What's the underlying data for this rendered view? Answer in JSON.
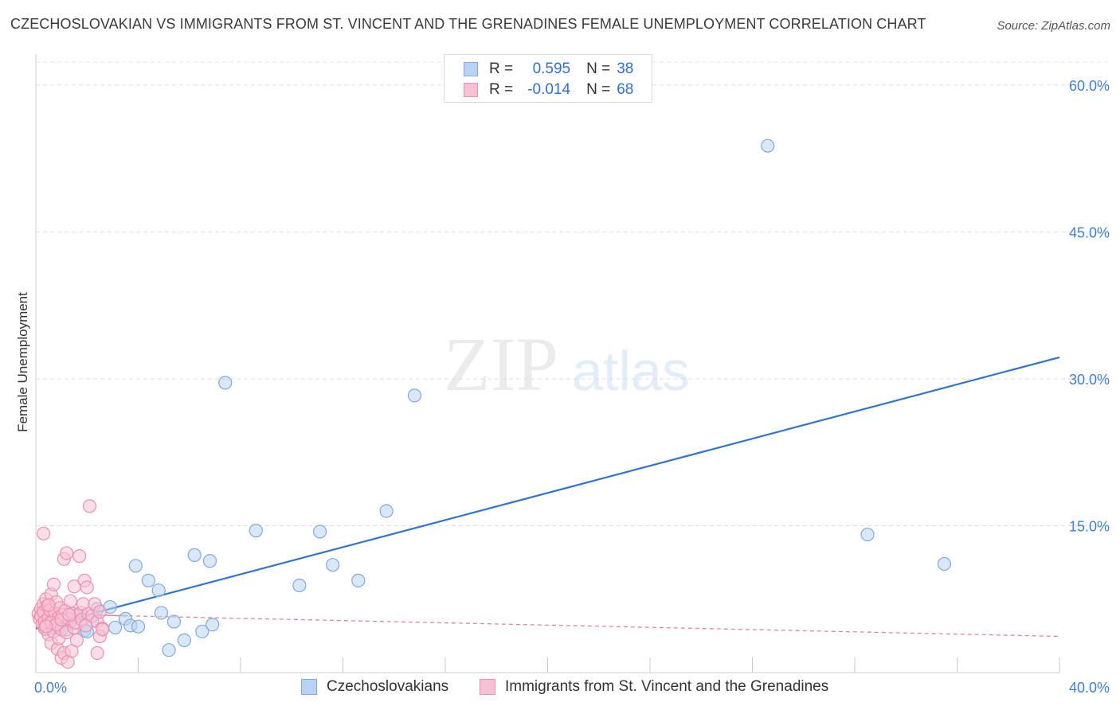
{
  "header": {
    "title": "CZECHOSLOVAKIAN VS IMMIGRANTS FROM ST. VINCENT AND THE GRENADINES FEMALE UNEMPLOYMENT CORRELATION CHART",
    "source": "Source: ZipAtlas.com"
  },
  "watermark": {
    "part1": "ZIP",
    "part2": "atlas"
  },
  "colors": {
    "blue_fill": "#b8d3f4",
    "blue_stroke": "#7fa9e0",
    "blue_line": "#2f74d0",
    "pink_fill": "#f6c2d3",
    "pink_stroke": "#ee8fb0",
    "pink_line": "#e5839f",
    "axis_text": "#3f7fd6"
  },
  "legend_top": {
    "rows": [
      {
        "r_label": "R =",
        "r_value": "0.595",
        "n_label": "N =",
        "n_value": "38"
      },
      {
        "r_label": "R =",
        "r_value": "-0.014",
        "n_label": "N =",
        "n_value": "68"
      }
    ]
  },
  "legend_bottom": {
    "items": [
      {
        "label": "Czechoslovakians"
      },
      {
        "label": "Immigrants from St. Vincent and the Grenadines"
      }
    ]
  },
  "chart_data": {
    "type": "scatter",
    "title": "CZECHOSLOVAKIAN VS IMMIGRANTS FROM ST. VINCENT AND THE GRENADINES FEMALE UNEMPLOYMENT CORRELATION CHART",
    "xlabel": "",
    "ylabel": "Female Unemployment",
    "xlim": [
      0,
      40
    ],
    "ylim": [
      0,
      63
    ],
    "x_tick_labels": [
      "0.0%",
      "40.0%"
    ],
    "y_ticks": [
      15,
      30,
      45,
      60
    ],
    "y_tick_labels": [
      "15.0%",
      "30.0%",
      "45.0%",
      "60.0%"
    ],
    "grid": true,
    "series": [
      {
        "name": "Czechoslovakians",
        "r": 0.595,
        "n": 38,
        "trend": {
          "x": [
            0,
            40
          ],
          "y": [
            4.5,
            32.2
          ]
        },
        "points": [
          [
            0.4,
            4.4
          ],
          [
            0.9,
            4.6
          ],
          [
            1.3,
            5.0
          ],
          [
            1.7,
            5.8
          ],
          [
            1.9,
            4.3
          ],
          [
            2.2,
            5.3
          ],
          [
            2.4,
            6.5
          ],
          [
            2.9,
            6.7
          ],
          [
            3.1,
            4.6
          ],
          [
            3.5,
            5.5
          ],
          [
            3.7,
            4.8
          ],
          [
            4.0,
            4.7
          ],
          [
            3.9,
            10.9
          ],
          [
            4.4,
            9.4
          ],
          [
            4.8,
            8.4
          ],
          [
            4.9,
            6.1
          ],
          [
            5.2,
            2.3
          ],
          [
            5.4,
            5.2
          ],
          [
            5.8,
            3.3
          ],
          [
            6.2,
            12.0
          ],
          [
            6.5,
            4.2
          ],
          [
            6.8,
            11.4
          ],
          [
            6.9,
            4.9
          ],
          [
            7.4,
            29.6
          ],
          [
            8.6,
            14.5
          ],
          [
            10.3,
            8.9
          ],
          [
            11.1,
            14.4
          ],
          [
            11.6,
            11.0
          ],
          [
            12.6,
            9.4
          ],
          [
            13.7,
            16.5
          ],
          [
            14.8,
            28.3
          ],
          [
            28.6,
            53.8
          ],
          [
            32.5,
            14.1
          ],
          [
            35.5,
            11.1
          ],
          [
            1.2,
            4.4
          ],
          [
            0.7,
            4.6
          ],
          [
            2.0,
            4.2
          ],
          [
            1.6,
            5.9
          ]
        ]
      },
      {
        "name": "Immigrants from St. Vincent and the Grenadines",
        "r": -0.014,
        "n": 68,
        "trend": {
          "x": [
            0,
            40
          ],
          "y": [
            6.0,
            3.7
          ]
        },
        "points": [
          [
            0.1,
            6.0
          ],
          [
            0.15,
            5.5
          ],
          [
            0.2,
            6.5
          ],
          [
            0.25,
            5.0
          ],
          [
            0.3,
            7.0
          ],
          [
            0.35,
            4.5
          ],
          [
            0.2,
            5.8
          ],
          [
            0.3,
            6.2
          ],
          [
            0.35,
            5.2
          ],
          [
            0.4,
            7.5
          ],
          [
            0.4,
            4.8
          ],
          [
            0.45,
            6.8
          ],
          [
            0.5,
            5.6
          ],
          [
            0.5,
            3.9
          ],
          [
            0.55,
            6.4
          ],
          [
            0.6,
            8.0
          ],
          [
            0.6,
            3.0
          ],
          [
            0.65,
            5.3
          ],
          [
            0.7,
            9.0
          ],
          [
            0.7,
            4.2
          ],
          [
            0.75,
            6.1
          ],
          [
            0.8,
            5.0
          ],
          [
            0.8,
            7.2
          ],
          [
            0.85,
            2.4
          ],
          [
            0.9,
            5.7
          ],
          [
            0.9,
            3.5
          ],
          [
            0.95,
            6.6
          ],
          [
            1.0,
            4.4
          ],
          [
            1.0,
            1.5
          ],
          [
            1.05,
            5.9
          ],
          [
            1.1,
            11.6
          ],
          [
            1.1,
            2.0
          ],
          [
            1.15,
            6.3
          ],
          [
            1.2,
            12.2
          ],
          [
            1.2,
            4.1
          ],
          [
            1.25,
            1.1
          ],
          [
            1.3,
            5.5
          ],
          [
            1.35,
            7.3
          ],
          [
            1.4,
            2.2
          ],
          [
            1.45,
            6.0
          ],
          [
            1.5,
            8.8
          ],
          [
            1.5,
            4.6
          ],
          [
            1.55,
            5.1
          ],
          [
            1.6,
            3.3
          ],
          [
            1.7,
            11.9
          ],
          [
            1.75,
            6.1
          ],
          [
            1.8,
            5.4
          ],
          [
            1.85,
            7.0
          ],
          [
            1.9,
            9.4
          ],
          [
            1.95,
            4.8
          ],
          [
            2.0,
            8.7
          ],
          [
            2.05,
            6.0
          ],
          [
            2.1,
            17.0
          ],
          [
            2.2,
            5.8
          ],
          [
            2.3,
            7.0
          ],
          [
            2.4,
            5.2
          ],
          [
            2.5,
            6.2
          ],
          [
            2.6,
            4.5
          ],
          [
            0.3,
            14.2
          ],
          [
            0.5,
            6.9
          ],
          [
            0.6,
            5.1
          ],
          [
            0.8,
            4.9
          ],
          [
            1.0,
            5.4
          ],
          [
            1.3,
            5.9
          ],
          [
            2.5,
            3.7
          ],
          [
            2.6,
            4.4
          ],
          [
            2.4,
            2.0
          ],
          [
            0.4,
            4.7
          ]
        ]
      }
    ]
  },
  "y_axis_title": "Female Unemployment"
}
